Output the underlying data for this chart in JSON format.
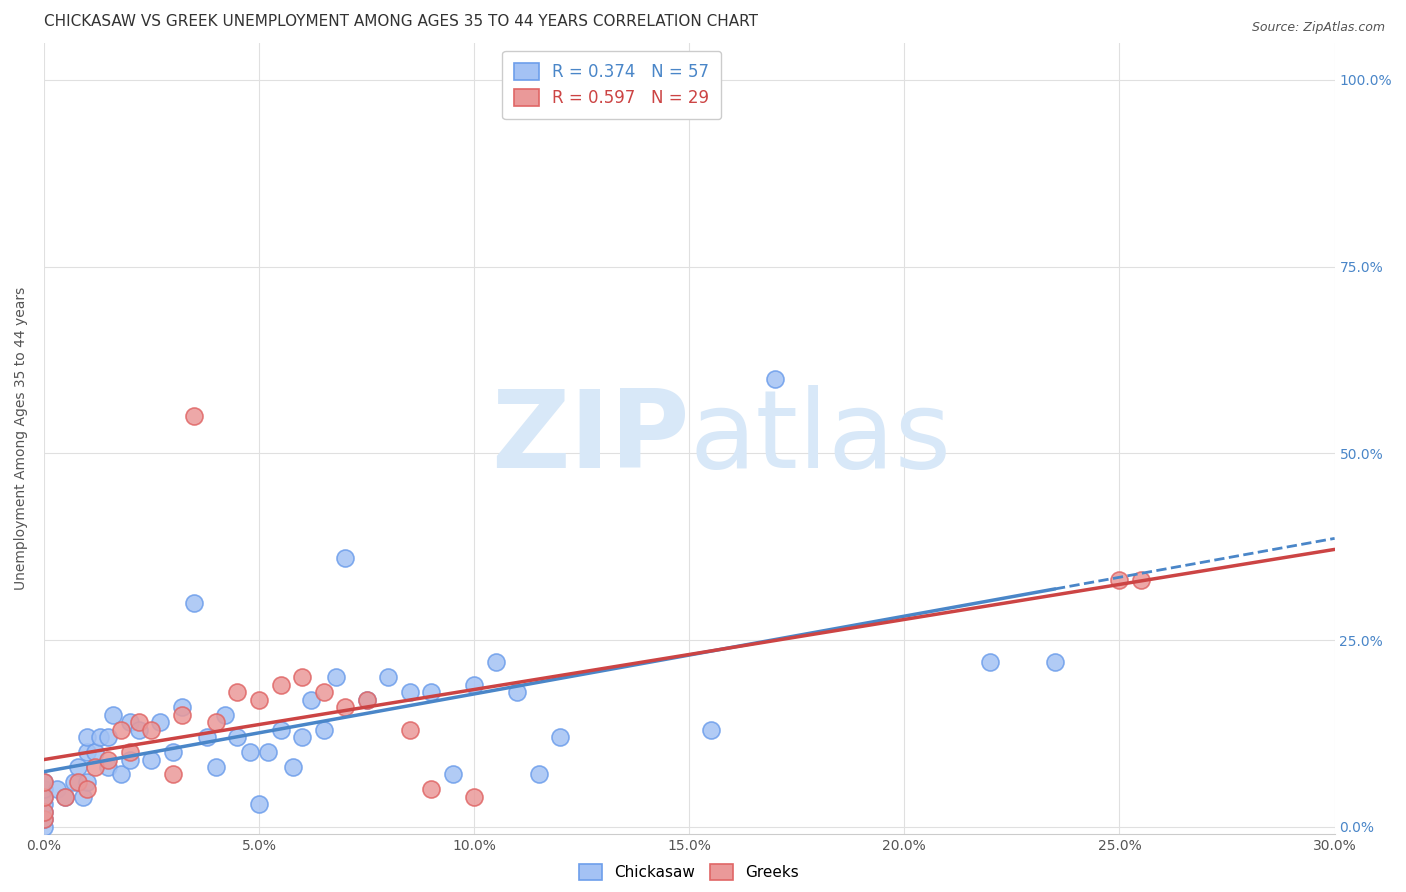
{
  "title": "CHICKASAW VS GREEK UNEMPLOYMENT AMONG AGES 35 TO 44 YEARS CORRELATION CHART",
  "source": "Source: ZipAtlas.com",
  "ylabel": "Unemployment Among Ages 35 to 44 years",
  "xlabel_ticks": [
    "0.0%",
    "5.0%",
    "10.0%",
    "15.0%",
    "20.0%",
    "25.0%",
    "30.0%"
  ],
  "ylabel_ticks": [
    "0.0%",
    "25.0%",
    "50.0%",
    "75.0%",
    "100.0%"
  ],
  "xlim": [
    0.0,
    0.3
  ],
  "ylim": [
    -0.01,
    1.05
  ],
  "chickasaw_R": 0.374,
  "chickasaw_N": 57,
  "greek_R": 0.597,
  "greek_N": 29,
  "chickasaw_color": "#a4c2f4",
  "greek_color": "#ea9999",
  "chickasaw_edge_color": "#6d9eeb",
  "greek_edge_color": "#e06666",
  "regression_chickasaw_color": "#4a86c8",
  "regression_greek_color": "#cc4444",
  "watermark_zip": "ZIP",
  "watermark_atlas": "atlas",
  "watermark_color": "#d8e8f8",
  "background_color": "#ffffff",
  "grid_color": "#e0e0e0",
  "title_fontsize": 11,
  "label_fontsize": 10,
  "tick_fontsize": 10,
  "legend_fontsize": 12,
  "right_tick_color": "#4a86c8",
  "chickasaw_x": [
    0.0,
    0.0,
    0.0,
    0.0,
    0.0,
    0.0,
    0.0,
    0.003,
    0.005,
    0.007,
    0.008,
    0.009,
    0.01,
    0.01,
    0.01,
    0.012,
    0.013,
    0.015,
    0.015,
    0.016,
    0.018,
    0.02,
    0.02,
    0.022,
    0.025,
    0.027,
    0.03,
    0.032,
    0.035,
    0.038,
    0.04,
    0.042,
    0.045,
    0.048,
    0.05,
    0.052,
    0.055,
    0.058,
    0.06,
    0.062,
    0.065,
    0.068,
    0.07,
    0.075,
    0.08,
    0.085,
    0.09,
    0.095,
    0.1,
    0.105,
    0.11,
    0.115,
    0.12,
    0.155,
    0.17,
    0.22,
    0.235
  ],
  "chickasaw_y": [
    0.0,
    0.01,
    0.02,
    0.03,
    0.04,
    0.05,
    0.06,
    0.05,
    0.04,
    0.06,
    0.08,
    0.04,
    0.06,
    0.1,
    0.12,
    0.1,
    0.12,
    0.08,
    0.12,
    0.15,
    0.07,
    0.09,
    0.14,
    0.13,
    0.09,
    0.14,
    0.1,
    0.16,
    0.3,
    0.12,
    0.08,
    0.15,
    0.12,
    0.1,
    0.03,
    0.1,
    0.13,
    0.08,
    0.12,
    0.17,
    0.13,
    0.2,
    0.36,
    0.17,
    0.2,
    0.18,
    0.18,
    0.07,
    0.19,
    0.22,
    0.18,
    0.07,
    0.12,
    0.13,
    0.6,
    0.22,
    0.22
  ],
  "greek_x": [
    0.0,
    0.0,
    0.0,
    0.0,
    0.005,
    0.008,
    0.01,
    0.012,
    0.015,
    0.018,
    0.02,
    0.022,
    0.025,
    0.03,
    0.032,
    0.035,
    0.04,
    0.045,
    0.05,
    0.055,
    0.06,
    0.065,
    0.07,
    0.075,
    0.085,
    0.09,
    0.1,
    0.25,
    0.255
  ],
  "greek_y": [
    0.01,
    0.02,
    0.04,
    0.06,
    0.04,
    0.06,
    0.05,
    0.08,
    0.09,
    0.13,
    0.1,
    0.14,
    0.13,
    0.07,
    0.15,
    0.55,
    0.14,
    0.18,
    0.17,
    0.19,
    0.2,
    0.18,
    0.16,
    0.17,
    0.13,
    0.05,
    0.04,
    0.33,
    0.33
  ],
  "legend_bottom_labels": [
    "Chickasaw",
    "Greeks"
  ]
}
